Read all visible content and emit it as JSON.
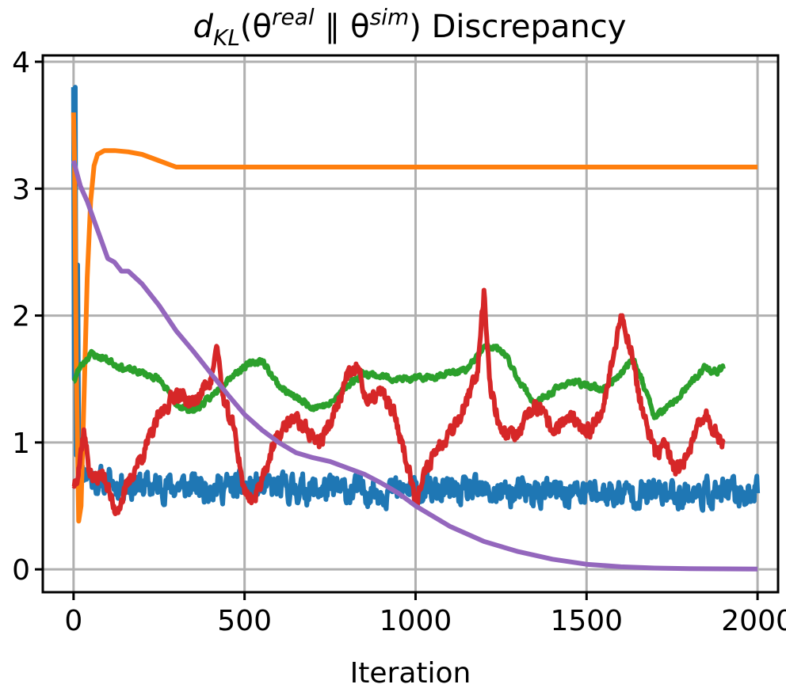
{
  "chart_data": {
    "type": "line",
    "title": {
      "main": "d",
      "sub": "KL",
      "open": "(θ",
      "sup1": "real",
      "sep": " ∥ θ",
      "sup2": "sim",
      "close": ") Discrepancy"
    },
    "xlabel": "Iteration",
    "ylabel": "",
    "xlim": [
      -90,
      2060
    ],
    "ylim": [
      -0.18,
      4.05
    ],
    "xticks": [
      0,
      500,
      1000,
      1500,
      2000
    ],
    "yticks": [
      0,
      1,
      2,
      3,
      4
    ],
    "grid": true,
    "legend": "none",
    "series": [
      {
        "color": "#1f77b4",
        "style": "noisy",
        "seed": 11,
        "noise": 0.09,
        "x": [
          0,
          2,
          5,
          8,
          12,
          16,
          20,
          25,
          40,
          60,
          100,
          200,
          400,
          600,
          800,
          1000,
          1200,
          1400,
          1600,
          1800,
          2000
        ],
        "y": [
          3.8,
          1.5,
          3.8,
          0.9,
          2.4,
          0.7,
          1.1,
          0.8,
          0.75,
          0.7,
          0.68,
          0.66,
          0.65,
          0.64,
          0.62,
          0.62,
          0.6,
          0.6,
          0.6,
          0.6,
          0.6
        ]
      },
      {
        "color": "#ff7f0e",
        "style": "smooth",
        "x": [
          0,
          3,
          8,
          15,
          22,
          30,
          40,
          50,
          60,
          70,
          90,
          120,
          160,
          200,
          250,
          300,
          400,
          600,
          1000,
          1500,
          2000
        ],
        "y": [
          3.6,
          3.2,
          1.6,
          0.38,
          0.5,
          1.3,
          2.3,
          2.9,
          3.18,
          3.27,
          3.3,
          3.3,
          3.29,
          3.27,
          3.22,
          3.17,
          3.17,
          3.17,
          3.17,
          3.17,
          3.17
        ]
      },
      {
        "color": "#2ca02c",
        "style": "noisy",
        "seed": 23,
        "noise": 0.02,
        "x": [
          0,
          20,
          50,
          100,
          150,
          200,
          250,
          300,
          350,
          400,
          450,
          500,
          550,
          600,
          650,
          700,
          750,
          800,
          850,
          900,
          950,
          1000,
          1050,
          1100,
          1150,
          1200,
          1230,
          1260,
          1300,
          1350,
          1400,
          1450,
          1500,
          1550,
          1600,
          1640,
          1660,
          1700,
          1750,
          1800,
          1850,
          1870,
          1900
        ],
        "y": [
          1.48,
          1.6,
          1.7,
          1.65,
          1.58,
          1.55,
          1.5,
          1.3,
          1.25,
          1.35,
          1.5,
          1.6,
          1.65,
          1.45,
          1.35,
          1.28,
          1.3,
          1.45,
          1.55,
          1.52,
          1.5,
          1.5,
          1.52,
          1.55,
          1.57,
          1.75,
          1.75,
          1.7,
          1.5,
          1.3,
          1.4,
          1.48,
          1.45,
          1.42,
          1.55,
          1.65,
          1.5,
          1.2,
          1.3,
          1.45,
          1.6,
          1.55,
          1.58
        ]
      },
      {
        "color": "#d62728",
        "style": "noisy",
        "seed": 37,
        "noise": 0.05,
        "x": [
          0,
          15,
          30,
          45,
          60,
          90,
          120,
          150,
          180,
          210,
          250,
          300,
          350,
          400,
          420,
          440,
          470,
          500,
          530,
          560,
          600,
          640,
          680,
          720,
          760,
          800,
          830,
          860,
          900,
          940,
          980,
          1000,
          1050,
          1100,
          1150,
          1180,
          1200,
          1220,
          1250,
          1300,
          1350,
          1400,
          1450,
          1500,
          1550,
          1580,
          1600,
          1630,
          1650,
          1670,
          1700,
          1730,
          1760,
          1800,
          1850,
          1880,
          1900
        ],
        "y": [
          0.66,
          0.8,
          1.1,
          0.8,
          0.7,
          0.75,
          0.45,
          0.6,
          0.8,
          0.95,
          1.2,
          1.4,
          1.3,
          1.5,
          1.75,
          1.3,
          1.1,
          0.6,
          0.55,
          0.8,
          1.05,
          1.2,
          1.1,
          1.0,
          1.2,
          1.5,
          1.6,
          1.3,
          1.4,
          1.2,
          0.8,
          0.55,
          0.9,
          1.1,
          1.3,
          1.55,
          2.2,
          1.4,
          1.1,
          1.05,
          1.3,
          1.1,
          1.2,
          1.05,
          1.3,
          1.7,
          2.0,
          1.75,
          1.4,
          1.2,
          0.9,
          1.0,
          0.75,
          0.95,
          1.25,
          1.05,
          1.0
        ]
      },
      {
        "color": "#9467bd",
        "style": "smooth",
        "x": [
          0,
          20,
          40,
          60,
          80,
          100,
          120,
          140,
          160,
          200,
          250,
          300,
          350,
          400,
          450,
          500,
          550,
          600,
          650,
          700,
          750,
          800,
          850,
          900,
          950,
          1000,
          1100,
          1200,
          1300,
          1400,
          1500,
          1600,
          1700,
          1800,
          2000
        ],
        "y": [
          3.22,
          3.02,
          2.9,
          2.75,
          2.6,
          2.45,
          2.42,
          2.35,
          2.35,
          2.25,
          2.08,
          1.88,
          1.72,
          1.55,
          1.38,
          1.22,
          1.1,
          1.0,
          0.92,
          0.88,
          0.85,
          0.8,
          0.75,
          0.68,
          0.6,
          0.5,
          0.34,
          0.22,
          0.14,
          0.08,
          0.04,
          0.02,
          0.01,
          0.005,
          0.002
        ]
      }
    ]
  }
}
